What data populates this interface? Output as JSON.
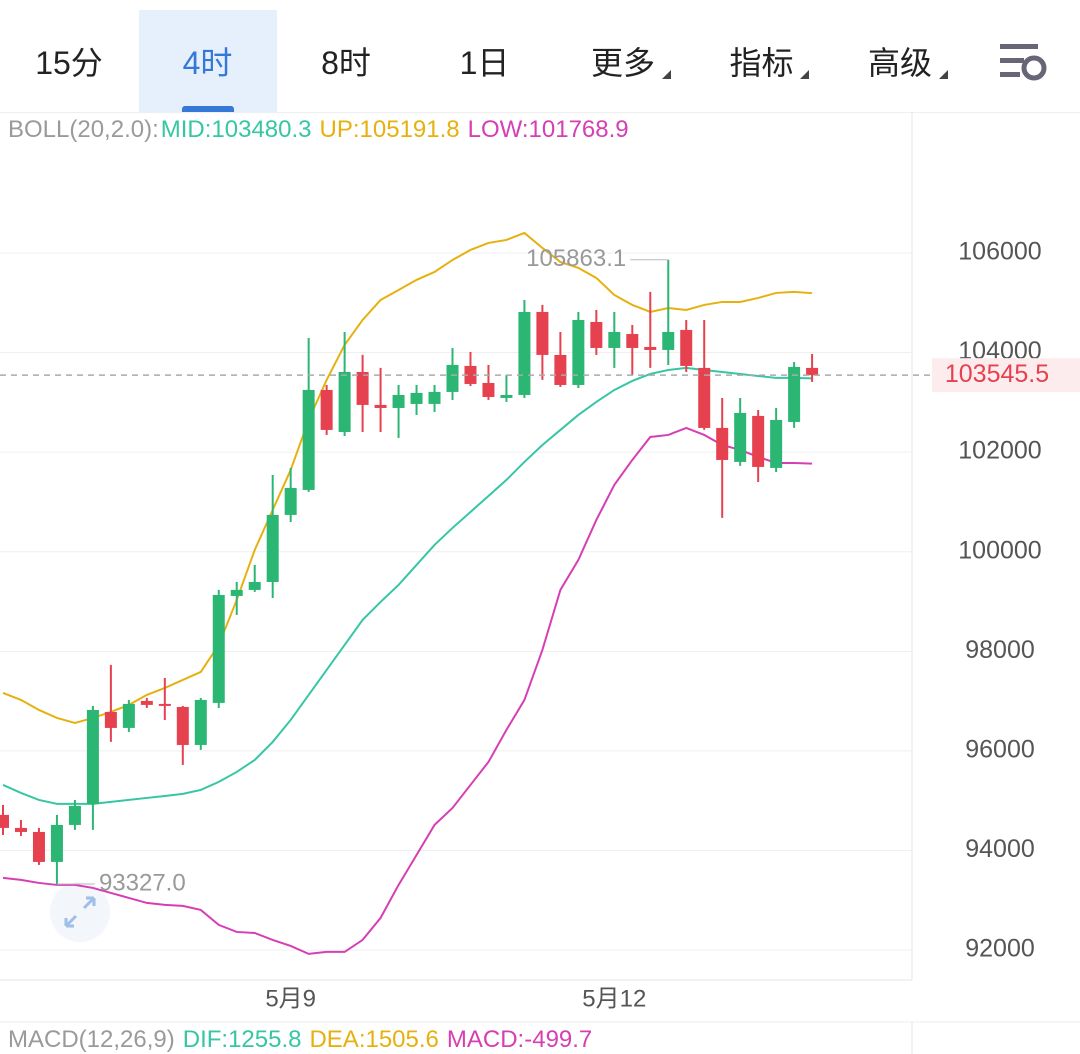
{
  "tabs": [
    "15分",
    "4时",
    "8时",
    "1日",
    "更多",
    "指标",
    "高级"
  ],
  "selected_tab": 1,
  "chart_data": {
    "type": "candlestick",
    "indicator": "BOLL(20,2.0):",
    "categories": [
      null,
      null,
      null,
      null,
      null,
      null,
      null,
      null,
      null,
      null,
      null,
      null,
      null,
      null,
      null,
      null,
      "5月9",
      null,
      null,
      null,
      null,
      null,
      null,
      null,
      null,
      null,
      null,
      null,
      null,
      null,
      null,
      null,
      null,
      null,
      "5月12",
      null,
      null,
      null,
      null,
      null,
      null,
      null,
      null,
      null,
      null,
      null
    ],
    "open": [
      94715,
      94454,
      94373,
      93771,
      94514,
      94936,
      96783,
      96462,
      97004,
      96944,
      96883,
      96120,
      96964,
      99112,
      99233,
      99393,
      100739,
      101241,
      103249,
      102405,
      103610,
      102948,
      102887,
      102968,
      102968,
      103209,
      103731,
      103389,
      103088,
      103148,
      104815,
      103952,
      103349,
      104614,
      104092,
      104373,
      104112,
      104052,
      104454,
      103691,
      102486,
      101803,
      102727,
      101683,
      102606,
      103691
    ],
    "high": [
      94916,
      94614,
      94454,
      94715,
      95016,
      96904,
      97727,
      97024,
      97064,
      97466,
      96904,
      97064,
      99233,
      99393,
      99735,
      101542,
      101683,
      104293,
      103349,
      104413,
      103952,
      103691,
      103349,
      103349,
      103349,
      104092,
      104012,
      103751,
      103550,
      105056,
      104956,
      104413,
      104815,
      104855,
      104815,
      104554,
      105217,
      105863.1,
      104654,
      104654,
      103088,
      103088,
      102847,
      102887,
      103811,
      103972
    ],
    "low": [
      94313,
      94293,
      93711,
      93327,
      94414,
      94414,
      96181,
      96381,
      96863,
      96622,
      95719,
      96020,
      96863,
      98731,
      99193,
      99072,
      100598,
      101201,
      102345,
      102325,
      102405,
      102405,
      102285,
      102747,
      102807,
      103048,
      103329,
      103048,
      103008,
      103088,
      103450,
      103309,
      103289,
      103952,
      103691,
      103550,
      103691,
      103751,
      103610,
      102446,
      100679,
      101723,
      101401,
      101602,
      102486,
      103409
    ],
    "close": [
      94454,
      94373,
      93771,
      94514,
      94896,
      96823,
      96462,
      96944,
      96924,
      96904,
      96120,
      97024,
      99132,
      99233,
      99393,
      100739,
      101281,
      103249,
      102446,
      103610,
      102948,
      102887,
      103148,
      103189,
      103209,
      103751,
      103369,
      103108,
      103148,
      104815,
      103952,
      103349,
      104654,
      104092,
      104413,
      104092,
      104052,
      104413,
      103731,
      102486,
      101843,
      102787,
      101703,
      102646,
      103711,
      103545.5
    ],
    "up_color": "#2bb673",
    "down_color": "#e5414f",
    "series": [
      {
        "label": "MID:103480.3",
        "color": "#36c6a3",
        "values": [
          95317,
          95156,
          95016,
          94936,
          94936,
          94936,
          94976,
          95016,
          95056,
          95096,
          95137,
          95217,
          95378,
          95578,
          95819,
          96181,
          96622,
          97124,
          97626,
          98128,
          98630,
          98992,
          99333,
          99735,
          100136,
          100478,
          100799,
          101120,
          101442,
          101803,
          102144,
          102446,
          102747,
          103008,
          103249,
          103430,
          103570,
          103650,
          103691,
          103650,
          103610,
          103570,
          103530,
          103490,
          103490,
          103480.3
        ]
      },
      {
        "label": "UP:105191.8",
        "color": "#e6b10f",
        "values": [
          97165,
          97024,
          96823,
          96663,
          96562,
          96663,
          96783,
          96924,
          97125,
          97265,
          97426,
          97586,
          98128,
          99032,
          100036,
          100839,
          101642,
          102646,
          103450,
          104153,
          104654,
          105056,
          105257,
          105458,
          105618,
          105859,
          106060,
          106201,
          106261,
          106402,
          106100,
          105819,
          105699,
          105498,
          105156,
          104956,
          104815,
          104895,
          104855,
          104956,
          105016,
          105016,
          105096,
          105197,
          105217,
          105191.8
        ]
      },
      {
        "label": "LOW:101768.9",
        "color": "#d63fb4",
        "values": [
          93450,
          93410,
          93349,
          93309,
          93309,
          93249,
          93148,
          93048,
          92948,
          92908,
          92888,
          92807,
          92506,
          92365,
          92345,
          92205,
          92084,
          91924,
          91964,
          91964,
          92205,
          92647,
          93309,
          93911,
          94514,
          94855,
          95317,
          95779,
          96422,
          97024,
          98028,
          99233,
          99835,
          100638,
          101341,
          101843,
          102305,
          102345,
          102486,
          102345,
          102144,
          102044,
          101904,
          101783,
          101783,
          101768.9
        ]
      }
    ],
    "ylim": [
      91400,
      108770
    ],
    "yticks": [
      92000,
      94000,
      96000,
      98000,
      100000,
      102000,
      104000,
      106000
    ],
    "grid": true,
    "last_price": 103545.5,
    "max_label": "105863.1",
    "min_label": "93327.0",
    "macd_legend": [
      "MACD(12,26,9)",
      "DIF:1255.8",
      "DEA:1505.6",
      "MACD:-499.7"
    ],
    "macd_colors": [
      "#9a9a9a",
      "#36c6a3",
      "#e6b10f",
      "#d63fb4"
    ]
  }
}
